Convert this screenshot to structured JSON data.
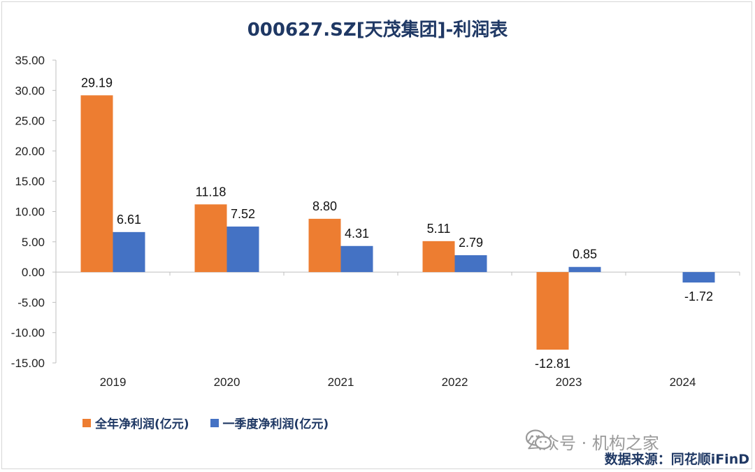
{
  "title": "000627.SZ[天茂集团]-利润表",
  "chart_data": {
    "type": "bar",
    "title": "000627.SZ[天茂集团]-利润表",
    "categories": [
      "2019",
      "2020",
      "2021",
      "2022",
      "2023",
      "2024"
    ],
    "series": [
      {
        "name": "全年净利润(亿元)",
        "color": "#ed7d31",
        "values": [
          29.19,
          11.18,
          8.8,
          5.11,
          -12.81,
          null
        ],
        "labels": [
          "29.19",
          "11.18",
          "8.80",
          "5.11",
          "-12.81",
          ""
        ]
      },
      {
        "name": "一季度净利润(亿元)",
        "color": "#4472c4",
        "values": [
          6.61,
          7.52,
          4.31,
          2.79,
          0.85,
          -1.72
        ],
        "labels": [
          "6.61",
          "7.52",
          "4.31",
          "2.79",
          "0.85",
          "-1.72"
        ]
      }
    ],
    "ylim": [
      -15,
      35
    ],
    "yticks": [
      35,
      30,
      25,
      20,
      15,
      10,
      5,
      0,
      -5,
      -10,
      -15
    ],
    "ytick_labels": [
      "35.00",
      "30.00",
      "25.00",
      "20.00",
      "15.00",
      "10.00",
      "5.00",
      "0.00",
      "-5.00",
      "-10.00",
      "-15.00"
    ],
    "legend_position": "bottom-left",
    "grid": false
  },
  "legend": {
    "item1": "全年净利润(亿元)",
    "item2": "一季度净利润(亿元)"
  },
  "watermark": "公众号 · 机构之家",
  "source": "数据来源：同花顺iFinD"
}
